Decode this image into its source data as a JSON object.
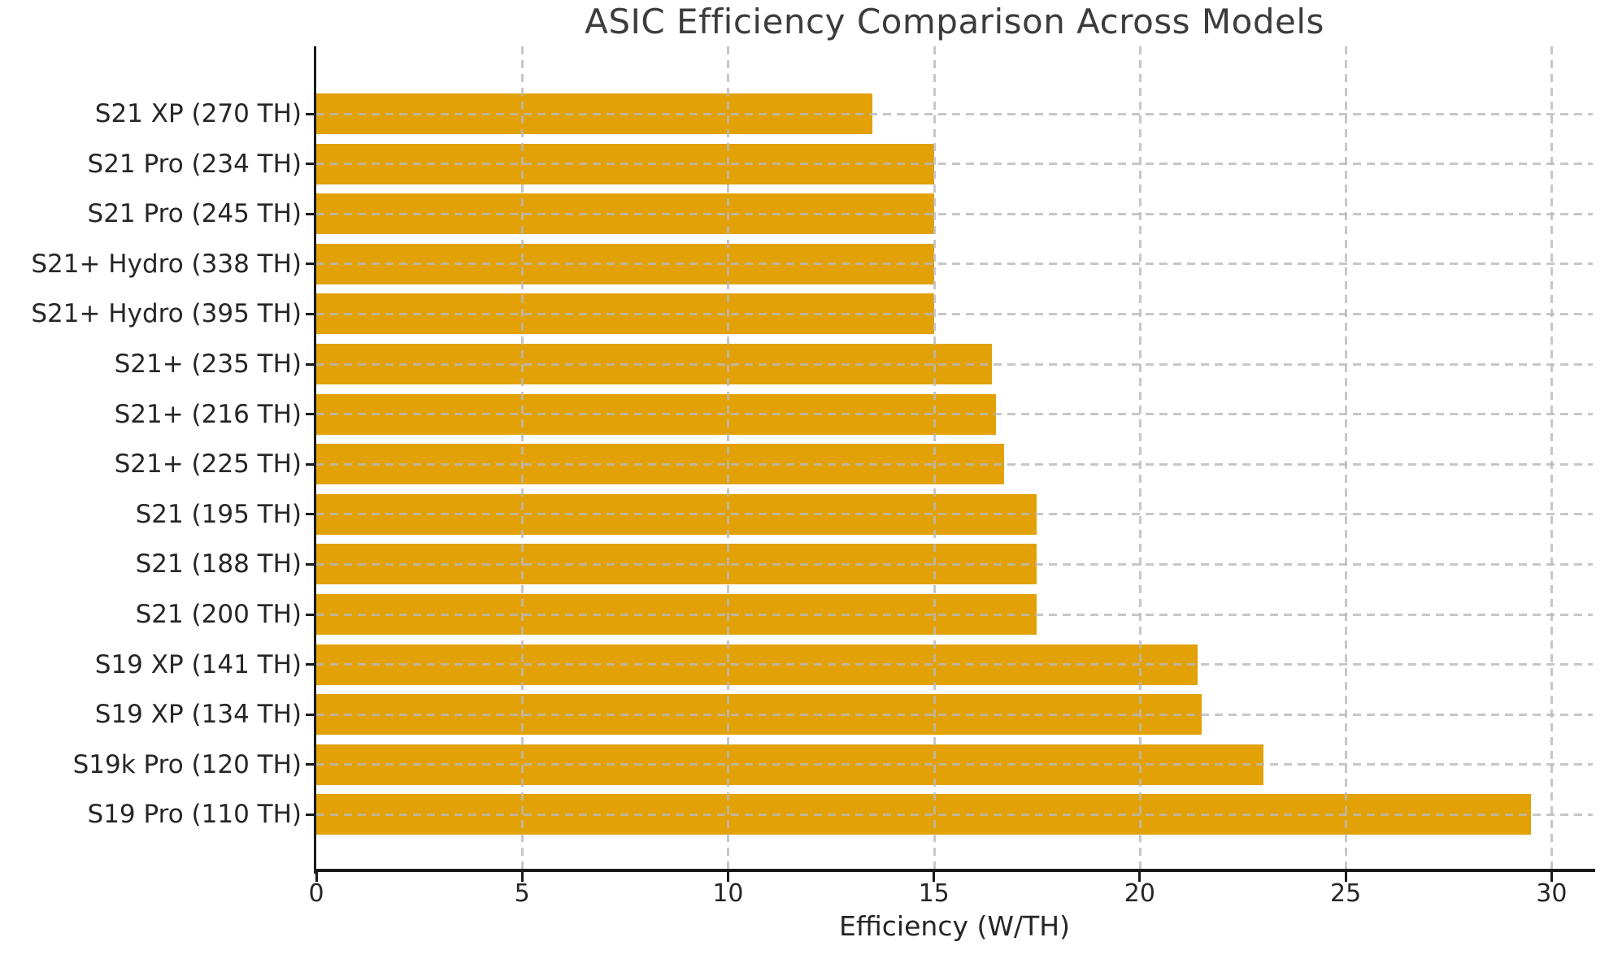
{
  "chart_data": {
    "type": "bar",
    "orientation": "horizontal",
    "title": "ASIC Efficiency Comparison Across Models",
    "xlabel": "Efficiency (W/TH)",
    "categories": [
      "S21 XP (270 TH)",
      "S21 Pro (234 TH)",
      "S21 Pro (245 TH)",
      "S21+ Hydro (338 TH)",
      "S21+ Hydro (395 TH)",
      "S21+ (235 TH)",
      "S21+ (216 TH)",
      "S21+ (225 TH)",
      "S21 (195 TH)",
      "S21 (188 TH)",
      "S21 (200 TH)",
      "S19 XP (141 TH)",
      "S19 XP (134 TH)",
      "S19k Pro (120 TH)",
      "S19 Pro (110 TH)"
    ],
    "values": [
      13.5,
      15.0,
      15.0,
      15.0,
      15.0,
      16.4,
      16.5,
      16.7,
      17.5,
      17.5,
      17.5,
      21.4,
      21.5,
      23.0,
      29.5
    ],
    "xticks": [
      0,
      5,
      10,
      15,
      20,
      25,
      30
    ],
    "xlim": [
      0,
      31
    ],
    "grid": "dashed, drawn above bars",
    "legend_position": "none",
    "bar_color": "#E2A106",
    "grid_color": "#c8c8c8",
    "axis_color": "#1a1a1a",
    "text_color": "#262626",
    "title_color": "#3c3c3c",
    "background_color": "#ffffff"
  }
}
